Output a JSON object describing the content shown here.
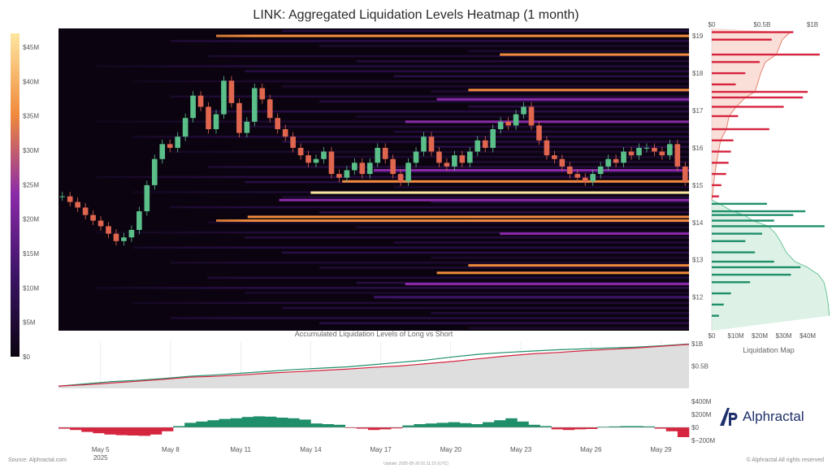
{
  "header": {
    "title": "LINK: Aggregated Liquidation Levels Heatmap (1 month)"
  },
  "footer": {
    "source": "Source: Alphractal.com",
    "update": "Update: 2025-05-30 01:11:15 (UTC)",
    "rights": "© Alphractal All rights reserved"
  },
  "brand": {
    "name": "Alphractal",
    "color": "#1f2f6b"
  },
  "colors": {
    "heat_bg": "#0b0410",
    "heat_low": "#3b1466",
    "heat_mid": "#8a2aa8",
    "heat_high": "#f08a3c",
    "heat_peak": "#fde6a0",
    "candle_up": "#5bbf8a",
    "candle_down": "#e0664f",
    "short_bar": "#d6253f",
    "long_bar": "#1f8f6b",
    "long_line": "#1f8f6b",
    "short_line": "#d6253f"
  },
  "chart_data": [
    {
      "id": "heatmap",
      "type": "heatmap",
      "title": "LINK: Aggregated Liquidation Levels Heatmap (1 month)",
      "x_ticks": [
        "May 5",
        "May 8",
        "May 11",
        "May 14",
        "May 17",
        "May 20",
        "May 23",
        "May 26",
        "May 29"
      ],
      "x_year": "2025",
      "y_ticks": [
        "$12",
        "$13",
        "$14",
        "$15",
        "$16",
        "$17",
        "$18",
        "$19"
      ],
      "ylim": [
        11.1,
        19.2
      ],
      "colorbar_ticks": [
        "$0",
        "$5M",
        "$10M",
        "$15M",
        "$20M",
        "$25M",
        "$30M",
        "$35M",
        "$40M",
        "$45M"
      ],
      "colorbar_range": [
        0,
        47
      ],
      "price": [
        14.7,
        14.55,
        14.4,
        14.2,
        14.05,
        13.9,
        13.7,
        13.5,
        13.6,
        13.8,
        14.3,
        15.0,
        15.7,
        16.1,
        16.0,
        16.3,
        16.8,
        17.4,
        17.1,
        16.5,
        16.9,
        17.8,
        17.2,
        16.4,
        16.7,
        17.6,
        17.3,
        16.8,
        16.5,
        16.3,
        16.0,
        15.8,
        15.6,
        15.7,
        15.9,
        15.3,
        15.2,
        15.4,
        15.6,
        15.3,
        15.6,
        16.0,
        15.7,
        15.3,
        15.1,
        15.6,
        15.9,
        16.3,
        15.9,
        15.6,
        15.5,
        15.8,
        15.6,
        15.9,
        16.2,
        16.0,
        16.5,
        16.7,
        16.6,
        16.9,
        17.1,
        16.6,
        16.2,
        15.8,
        15.7,
        15.5,
        15.3,
        15.2,
        15.1,
        15.3,
        15.5,
        15.7,
        15.6,
        15.9,
        15.8,
        16.0,
        16.0,
        15.9,
        15.8,
        16.1,
        15.5,
        15.1
      ],
      "levels": [
        {
          "price": 19.0,
          "value": 30
        },
        {
          "price": 18.5,
          "value": 26
        },
        {
          "price": 17.55,
          "value": 24
        },
        {
          "price": 17.3,
          "value": 12
        },
        {
          "price": 16.7,
          "value": 14
        },
        {
          "price": 15.4,
          "value": 18
        },
        {
          "price": 15.1,
          "value": 32
        },
        {
          "price": 14.8,
          "value": 34
        },
        {
          "price": 14.6,
          "value": 20
        },
        {
          "price": 14.15,
          "value": 28
        },
        {
          "price": 14.05,
          "value": 22
        },
        {
          "price": 13.7,
          "value": 16
        },
        {
          "price": 12.85,
          "value": 27
        },
        {
          "price": 12.65,
          "value": 24
        },
        {
          "price": 12.35,
          "value": 18
        },
        {
          "price": 12.0,
          "value": 10
        }
      ]
    },
    {
      "id": "liquidation_map",
      "type": "bar",
      "title": "Liquidation Map",
      "top_axis_ticks": [
        "$0",
        "$0.5B",
        "$1B"
      ],
      "bottom_axis_ticks": [
        "$0",
        "$10M",
        "$20M",
        "$30M",
        "$40M"
      ],
      "xlim": [
        0,
        42
      ],
      "split_price": 14.6,
      "short_bars": [
        {
          "price": 19.1,
          "value": 34
        },
        {
          "price": 18.9,
          "value": 25
        },
        {
          "price": 18.5,
          "value": 45
        },
        {
          "price": 18.3,
          "value": 20
        },
        {
          "price": 18.0,
          "value": 14
        },
        {
          "price": 17.7,
          "value": 10
        },
        {
          "price": 17.5,
          "value": 40
        },
        {
          "price": 17.35,
          "value": 38
        },
        {
          "price": 17.1,
          "value": 30
        },
        {
          "price": 16.85,
          "value": 11
        },
        {
          "price": 16.5,
          "value": 24
        },
        {
          "price": 16.2,
          "value": 9
        },
        {
          "price": 15.9,
          "value": 8
        },
        {
          "price": 15.6,
          "value": 7
        },
        {
          "price": 15.3,
          "value": 6
        },
        {
          "price": 15.0,
          "value": 4
        },
        {
          "price": 14.7,
          "value": 3
        }
      ],
      "long_bars": [
        {
          "price": 14.5,
          "value": 23
        },
        {
          "price": 14.3,
          "value": 39
        },
        {
          "price": 14.2,
          "value": 34
        },
        {
          "price": 14.05,
          "value": 26
        },
        {
          "price": 13.9,
          "value": 47
        },
        {
          "price": 13.7,
          "value": 21
        },
        {
          "price": 13.5,
          "value": 14
        },
        {
          "price": 13.2,
          "value": 18
        },
        {
          "price": 12.95,
          "value": 26
        },
        {
          "price": 12.8,
          "value": 37
        },
        {
          "price": 12.6,
          "value": 33
        },
        {
          "price": 12.4,
          "value": 16
        },
        {
          "price": 12.1,
          "value": 8
        },
        {
          "price": 11.8,
          "value": 5
        },
        {
          "price": 11.5,
          "value": 3
        }
      ]
    },
    {
      "id": "accumulated",
      "type": "area",
      "title": "Accumulated Liquidation Levels of Long vs Short",
      "y_ticks": [
        "$0.5B",
        "$1B"
      ],
      "ylim": [
        0,
        1.05
      ],
      "series": [
        {
          "values": [
            0.05,
            0.1,
            0.15,
            0.18,
            0.22,
            0.27,
            0.3,
            0.34,
            0.38,
            0.42,
            0.45,
            0.48,
            0.53,
            0.58,
            0.63,
            0.7,
            0.76,
            0.8,
            0.83,
            0.86,
            0.88,
            0.9,
            0.92,
            0.95,
            0.99
          ]
        },
        {
          "values": [
            0.05,
            0.08,
            0.12,
            0.16,
            0.2,
            0.25,
            0.27,
            0.3,
            0.34,
            0.37,
            0.4,
            0.43,
            0.47,
            0.5,
            0.55,
            0.6,
            0.66,
            0.72,
            0.77,
            0.8,
            0.84,
            0.87,
            0.9,
            0.94,
            0.98
          ]
        }
      ]
    },
    {
      "id": "long_short_diff",
      "type": "bar",
      "y_ticks": [
        "$400M",
        "$200M",
        "$0",
        "$−200M"
      ],
      "ylim": [
        -250,
        450
      ],
      "values": [
        -20,
        -40,
        -70,
        -90,
        -110,
        -120,
        -125,
        -130,
        -110,
        -60,
        20,
        70,
        90,
        110,
        130,
        140,
        160,
        170,
        165,
        150,
        140,
        120,
        60,
        50,
        40,
        -10,
        -20,
        -40,
        -30,
        -15,
        30,
        50,
        60,
        70,
        80,
        65,
        50,
        80,
        110,
        140,
        90,
        40,
        20,
        -30,
        -40,
        -30,
        -25,
        10,
        15,
        20,
        20,
        15,
        -20,
        -60,
        -150
      ]
    }
  ]
}
